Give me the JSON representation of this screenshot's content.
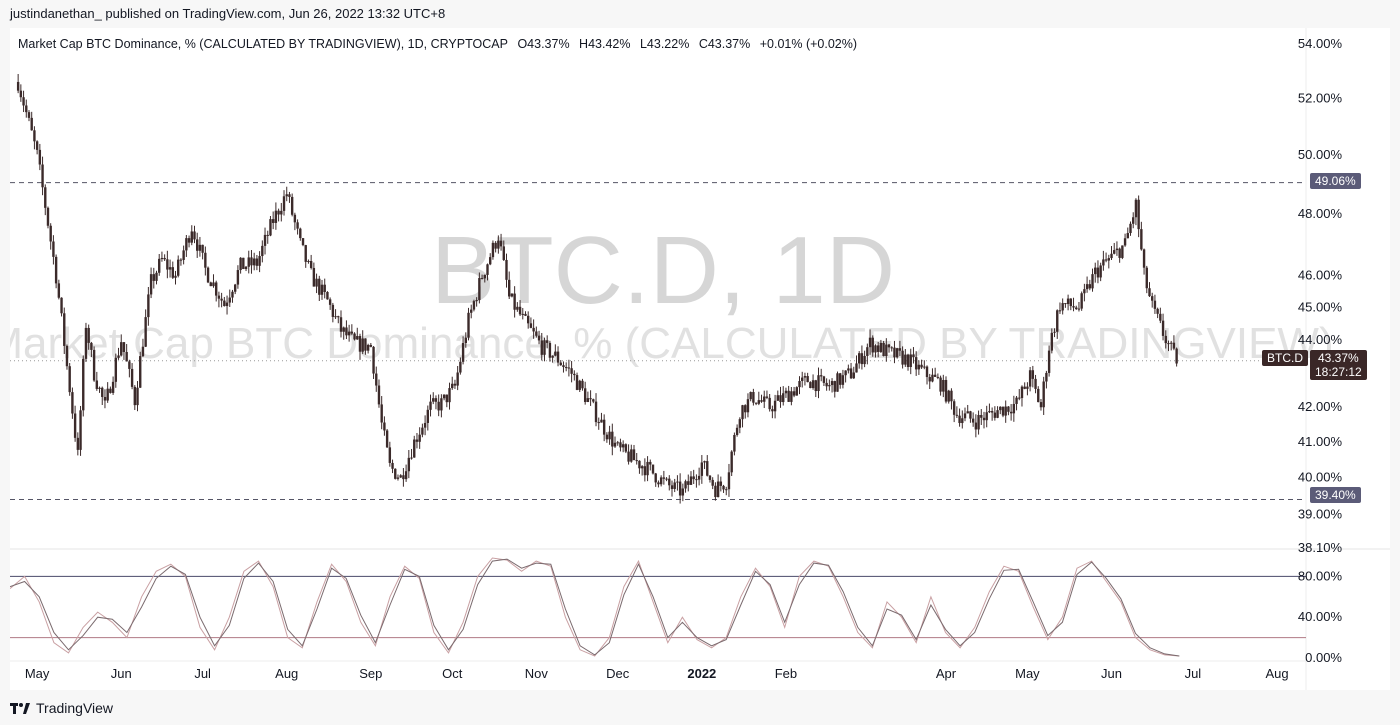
{
  "header": {
    "published_text": "justindanethan_ published on TradingView.com, Jun 26, 2022 13:32 UTC+8"
  },
  "legend": {
    "title": "Market Cap BTC Dominance, % (CALCULATED BY TRADINGVIEW), 1D, CRYPTOCAP",
    "open": "O43.37%",
    "high": "H43.42%",
    "low": "L43.22%",
    "close": "C43.37%",
    "change": "+0.01% (+0.02%)"
  },
  "watermark": {
    "big": "BTC.D, 1D",
    "small": "Market Cap BTC Dominance, % (CALCULATED BY TRADINGVIEW)"
  },
  "price_tags": {
    "resistance": "49.06%",
    "support": "39.40%",
    "symbol": "BTC.D",
    "last_price": "43.37%",
    "countdown": "18:27:12"
  },
  "footer": {
    "brand": "TradingView"
  },
  "colors": {
    "candle": "#3b2a2a",
    "level_line": "#555566",
    "tag_bg": "#5b5b78",
    "last_bg": "#3a2727",
    "osc_k": "#c9a0a3",
    "osc_d": "#7a6a6e",
    "osc_band_upper": "#4a4a6a",
    "osc_band_lower": "#b07a84",
    "watermark": "#d6d6d6"
  },
  "chart_data": [
    {
      "type": "line",
      "title": "Market Cap BTC Dominance, % (CALCULATED BY TRADINGVIEW)",
      "series_style": "candlestick",
      "x_labels": [
        "May",
        "Jun",
        "Jul",
        "Aug",
        "Sep",
        "Oct",
        "Nov",
        "Dec",
        "2022",
        "Feb",
        "Apr",
        "May",
        "Jun",
        "Jul",
        "Aug"
      ],
      "y_axis_scale": "log",
      "y_ticks": [
        "38.10%",
        "39.00%",
        "40.00%",
        "41.00%",
        "42.00%",
        "44.00%",
        "45.00%",
        "46.00%",
        "48.00%",
        "50.00%",
        "52.00%",
        "54.00%"
      ],
      "ylim": [
        38.1,
        54.0
      ],
      "horizontal_levels": [
        49.06,
        39.4
      ],
      "last_value": 43.37,
      "series": [
        {
          "x": [
            "2021-04-24",
            "2021-05-01",
            "2021-05-08",
            "2021-05-12",
            "2021-05-16",
            "2021-05-19",
            "2021-05-22",
            "2021-05-26",
            "2021-06-01",
            "2021-06-06",
            "2021-06-12",
            "2021-06-16",
            "2021-06-21",
            "2021-06-27",
            "2021-07-02",
            "2021-07-09",
            "2021-07-15",
            "2021-07-21",
            "2021-07-27",
            "2021-08-01",
            "2021-08-06",
            "2021-08-10",
            "2021-08-16",
            "2021-08-21",
            "2021-08-26",
            "2021-09-01",
            "2021-09-05",
            "2021-09-08",
            "2021-09-12",
            "2021-09-17",
            "2021-09-23",
            "2021-09-27",
            "2021-10-02",
            "2021-10-07",
            "2021-10-12",
            "2021-10-18",
            "2021-10-22",
            "2021-10-28",
            "2021-11-03",
            "2021-11-08",
            "2021-11-14",
            "2021-11-20",
            "2021-11-26",
            "2021-12-01",
            "2021-12-07",
            "2021-12-13",
            "2021-12-19",
            "2021-12-25",
            "2022-01-01",
            "2022-01-06",
            "2022-01-10",
            "2022-01-15",
            "2022-01-20",
            "2022-01-26",
            "2022-02-02",
            "2022-02-09",
            "2022-02-17",
            "2022-02-25",
            "2022-03-04",
            "2022-03-11",
            "2022-03-18",
            "2022-03-24",
            "2022-03-30",
            "2022-04-05",
            "2022-04-12",
            "2022-04-20",
            "2022-04-27",
            "2022-05-02",
            "2022-05-06",
            "2022-05-09",
            "2022-05-13",
            "2022-05-20",
            "2022-05-26",
            "2022-06-01",
            "2022-06-06",
            "2022-06-10",
            "2022-06-13",
            "2022-06-16",
            "2022-06-20",
            "2022-06-24",
            "2022-06-26"
          ],
          "values": [
            52.6,
            50.0,
            46.0,
            43.2,
            40.6,
            44.5,
            43.0,
            42.0,
            44.0,
            42.2,
            45.8,
            46.5,
            46.0,
            47.6,
            46.2,
            45.1,
            46.3,
            46.4,
            47.8,
            48.7,
            47.0,
            46.0,
            45.2,
            44.3,
            43.9,
            43.8,
            41.5,
            40.3,
            40.0,
            41.0,
            42.0,
            42.1,
            42.6,
            44.6,
            46.0,
            47.3,
            45.3,
            44.5,
            43.8,
            43.5,
            43.0,
            42.2,
            41.4,
            40.8,
            40.5,
            40.2,
            39.8,
            39.6,
            40.4,
            39.7,
            39.9,
            41.9,
            42.3,
            42.0,
            42.4,
            42.8,
            42.6,
            43.0,
            43.9,
            43.6,
            43.4,
            43.0,
            42.7,
            41.8,
            41.6,
            41.9,
            42.1,
            42.9,
            42.0,
            43.8,
            45.1,
            45.0,
            46.1,
            46.6,
            47.0,
            48.3,
            46.0,
            45.0,
            44.2,
            43.5,
            43.37
          ]
        }
      ]
    },
    {
      "type": "line",
      "title": "",
      "y_ticks": [
        "0.00%",
        "40.00%",
        "80.00%"
      ],
      "ylim": [
        0,
        100
      ],
      "bands": [
        80,
        20
      ],
      "series": [
        {
          "values": [
            68,
            80,
            55,
            15,
            5,
            30,
            45,
            35,
            20,
            60,
            85,
            92,
            80,
            30,
            8,
            40,
            85,
            95,
            70,
            20,
            10,
            55,
            92,
            75,
            35,
            12,
            60,
            90,
            78,
            25,
            5,
            35,
            80,
            98,
            96,
            85,
            95,
            90,
            40,
            8,
            2,
            20,
            70,
            95,
            55,
            15,
            40,
            18,
            10,
            20,
            60,
            88,
            70,
            30,
            80,
            95,
            90,
            60,
            25,
            10,
            55,
            40,
            15,
            60,
            25,
            10,
            30,
            65,
            90,
            85,
            50,
            18,
            40,
            88,
            95,
            75,
            55,
            20,
            8,
            3,
            2
          ]
        },
        {
          "values": [
            70,
            75,
            60,
            25,
            8,
            22,
            40,
            38,
            25,
            50,
            78,
            90,
            82,
            40,
            12,
            32,
            78,
            93,
            75,
            28,
            12,
            48,
            88,
            78,
            42,
            15,
            52,
            87,
            80,
            32,
            8,
            28,
            72,
            95,
            97,
            88,
            93,
            92,
            48,
            12,
            3,
            15,
            62,
            92,
            60,
            20,
            35,
            20,
            12,
            18,
            52,
            85,
            72,
            35,
            72,
            93,
            91,
            65,
            30,
            12,
            48,
            42,
            18,
            52,
            28,
            12,
            25,
            58,
            86,
            87,
            55,
            22,
            35,
            82,
            94,
            78,
            58,
            24,
            10,
            4,
            2
          ]
        }
      ]
    }
  ]
}
